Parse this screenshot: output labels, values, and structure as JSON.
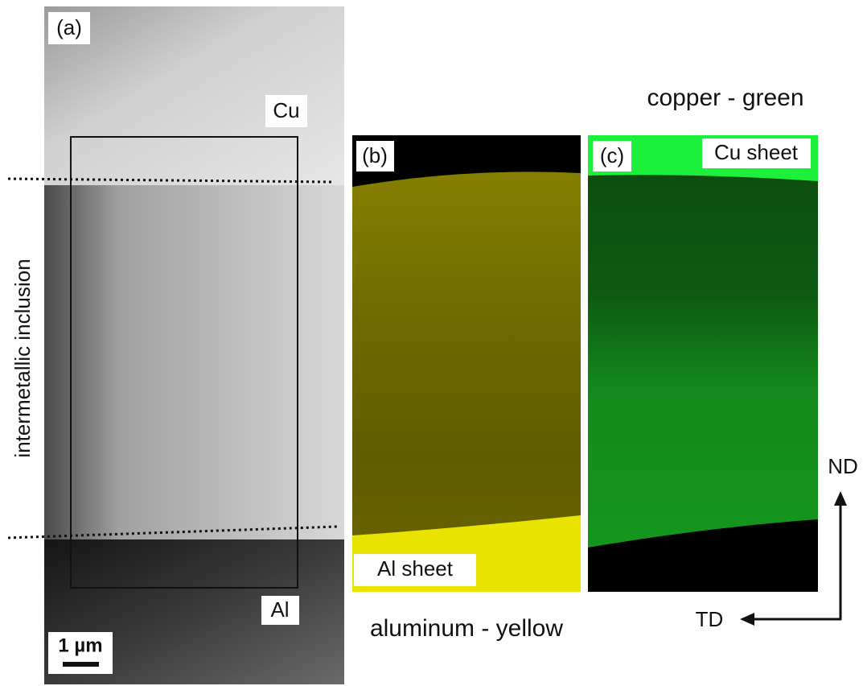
{
  "panels": {
    "a": {
      "label": "(a)",
      "top": "Cu",
      "bottom": "Al",
      "scale": "1 µm"
    },
    "b": {
      "label": "(b)",
      "sheet": "Al sheet",
      "caption": "aluminum - yellow"
    },
    "c": {
      "label": "(c)",
      "sheet": "Cu sheet",
      "caption": "copper - green"
    }
  },
  "side_label": "intermetallic inclusion",
  "axes": {
    "vertical": "ND",
    "horizontal": "TD"
  }
}
